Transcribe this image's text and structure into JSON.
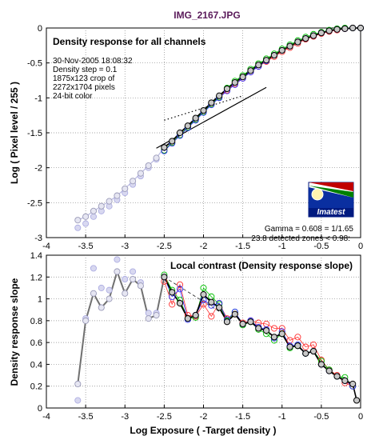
{
  "figure": {
    "title": "IMG_2167.JPG",
    "xlabel": "Log Exposure ( -Target density )"
  },
  "top_panel": {
    "title": "Density response for all channels",
    "ylabel": "Log ( Pixel level / 255 )",
    "info_lines": [
      "30-Nov-2005 18:08:32",
      "Density step = 0.1",
      "1875x123 crop of",
      "2272x1704 pixels",
      "24-bit color"
    ],
    "gamma_text": "Gamma = 0.608 = 1/1.65",
    "zones_text": "23.8 detected zones < 0.98:",
    "logo_text": "Imatest",
    "x_ticks": [
      "-4",
      "-3.5",
      "-3",
      "-2.5",
      "-2",
      "-1.5",
      "-1",
      "-0.5",
      "0"
    ],
    "y_ticks": [
      "0",
      "-0.5",
      "-1",
      "-1.5",
      "-2",
      "-2.5",
      "-3"
    ]
  },
  "bottom_panel": {
    "title": "Local contrast (Density response slope)",
    "ylabel": "Density response slope",
    "x_ticks": [
      "-4",
      "-3.5",
      "-3",
      "-2.5",
      "-2",
      "-1.5",
      "-1",
      "-0.5",
      "0"
    ],
    "y_ticks": [
      "1.4",
      "1.2",
      "1",
      "0.8",
      "0.6",
      "0.4",
      "0.2",
      "0"
    ]
  },
  "colors": {
    "red": "#ff3030",
    "green": "#00c000",
    "blue": "#3030ff",
    "gray": "#000000",
    "faded_fill": "#d8d8f0",
    "faded_edge": "#a8a8e0"
  },
  "chart_data": [
    {
      "type": "line",
      "title": "Density response for all channels",
      "xlabel": "Log Exposure ( -Target density )",
      "ylabel": "Log ( Pixel level / 255 )",
      "xlim": [
        -4,
        0
      ],
      "ylim": [
        -3,
        0
      ],
      "grid": true,
      "x": [
        -3.6,
        -3.5,
        -3.4,
        -3.3,
        -3.2,
        -3.1,
        -3.0,
        -2.9,
        -2.8,
        -2.7,
        -2.6,
        -2.5,
        -2.4,
        -2.3,
        -2.2,
        -2.1,
        -2.0,
        -1.9,
        -1.8,
        -1.7,
        -1.6,
        -1.5,
        -1.4,
        -1.3,
        -1.2,
        -1.1,
        -1.0,
        -0.9,
        -0.8,
        -0.7,
        -0.6,
        -0.5,
        -0.4,
        -0.3,
        -0.2,
        -0.1,
        0.0
      ],
      "saturated_below_x": -2.5,
      "series": [
        {
          "color": "red",
          "values": [
            -2.75,
            -2.7,
            -2.62,
            -2.55,
            -2.48,
            -2.4,
            -2.3,
            -2.19,
            -2.08,
            -1.97,
            -1.86,
            -1.75,
            -1.64,
            -1.53,
            -1.42,
            -1.31,
            -1.2,
            -1.09,
            -0.99,
            -0.89,
            -0.8,
            -0.72,
            -0.63,
            -0.55,
            -0.48,
            -0.41,
            -0.34,
            -0.28,
            -0.22,
            -0.16,
            -0.12,
            -0.08,
            -0.05,
            -0.03,
            -0.01,
            0.0,
            0.0
          ]
        },
        {
          "color": "green",
          "values": [
            -2.75,
            -2.7,
            -2.62,
            -2.55,
            -2.48,
            -2.4,
            -2.3,
            -2.19,
            -2.08,
            -1.97,
            -1.86,
            -1.75,
            -1.64,
            -1.53,
            -1.42,
            -1.31,
            -1.2,
            -1.09,
            -0.99,
            -0.86,
            -0.76,
            -0.68,
            -0.59,
            -0.51,
            -0.44,
            -0.37,
            -0.3,
            -0.24,
            -0.18,
            -0.13,
            -0.09,
            -0.06,
            -0.03,
            -0.01,
            0.0,
            0.0,
            0.0
          ]
        },
        {
          "color": "blue",
          "values": [
            -2.86,
            -2.8,
            -2.7,
            -2.62,
            -2.55,
            -2.46,
            -2.36,
            -2.24,
            -2.12,
            -2.0,
            -1.88,
            -1.76,
            -1.65,
            -1.54,
            -1.43,
            -1.32,
            -1.21,
            -1.1,
            -1.0,
            -0.9,
            -0.81,
            -0.72,
            -0.63,
            -0.55,
            -0.47,
            -0.39,
            -0.32,
            -0.26,
            -0.2,
            -0.15,
            -0.11,
            -0.07,
            -0.04,
            -0.02,
            -0.01,
            0.0,
            0.0
          ]
        },
        {
          "color": "gray",
          "values": [
            -2.75,
            -2.7,
            -2.62,
            -2.55,
            -2.48,
            -2.4,
            -2.3,
            -2.19,
            -2.08,
            -1.97,
            -1.86,
            -1.71,
            -1.62,
            -1.5,
            -1.4,
            -1.29,
            -1.18,
            -1.07,
            -0.97,
            -0.87,
            -0.78,
            -0.7,
            -0.61,
            -0.53,
            -0.46,
            -0.39,
            -0.32,
            -0.26,
            -0.2,
            -0.15,
            -0.11,
            -0.07,
            -0.04,
            -0.02,
            -0.01,
            0.0,
            0.0
          ]
        }
      ],
      "fit_line": {
        "x": [
          -2.6,
          -1.2
        ],
        "y": [
          -1.72,
          -0.85
        ]
      },
      "dotted_line": {
        "x": [
          -2.5,
          -1.5
        ],
        "y": [
          -1.32,
          -0.97
        ]
      }
    },
    {
      "type": "line",
      "title": "Local contrast (Density response slope)",
      "xlabel": "Log Exposure ( -Target density )",
      "ylabel": "Density response slope",
      "xlim": [
        -4,
        0
      ],
      "ylim": [
        0,
        1.4
      ],
      "grid": true,
      "x": [
        -3.6,
        -3.5,
        -3.4,
        -3.3,
        -3.2,
        -3.1,
        -3.0,
        -2.9,
        -2.8,
        -2.7,
        -2.6,
        -2.5,
        -2.4,
        -2.3,
        -2.2,
        -2.1,
        -2.0,
        -1.9,
        -1.8,
        -1.7,
        -1.6,
        -1.5,
        -1.4,
        -1.3,
        -1.2,
        -1.1,
        -1.0,
        -0.9,
        -0.8,
        -0.7,
        -0.6,
        -0.5,
        -0.4,
        -0.3,
        -0.2,
        -0.1
      ],
      "saturated_below_x": -2.5,
      "series": [
        {
          "color": "red",
          "values": [
            0.22,
            0.8,
            1.05,
            0.92,
            1.0,
            1.25,
            1.05,
            1.18,
            1.12,
            0.82,
            0.85,
            1.16,
            0.95,
            1.13,
            0.85,
            0.84,
            0.95,
            0.84,
            0.96,
            0.82,
            0.86,
            0.78,
            0.8,
            0.78,
            0.77,
            0.73,
            0.73,
            0.62,
            0.65,
            0.56,
            0.58,
            0.44,
            0.35,
            0.3,
            0.23,
            0.2
          ]
        },
        {
          "color": "green",
          "values": [
            0.22,
            0.8,
            1.05,
            0.92,
            1.0,
            1.25,
            1.05,
            1.18,
            1.12,
            0.82,
            0.85,
            1.22,
            1.08,
            0.99,
            0.82,
            0.83,
            1.1,
            1.02,
            0.95,
            0.8,
            0.88,
            0.76,
            0.79,
            0.72,
            0.68,
            0.62,
            0.68,
            0.55,
            0.57,
            0.5,
            0.52,
            0.43,
            0.35,
            0.29,
            0.28,
            0.2
          ]
        },
        {
          "color": "blue",
          "values": [
            0.07,
            0.82,
            1.28,
            1.1,
            1.08,
            1.36,
            1.18,
            1.25,
            1.15,
            0.87,
            0.87,
            1.2,
            1.02,
            1.09,
            0.81,
            0.85,
            0.99,
            0.94,
            0.96,
            0.81,
            0.88,
            0.77,
            0.8,
            0.74,
            0.72,
            0.64,
            0.7,
            0.57,
            0.58,
            0.5,
            0.52,
            0.4,
            0.34,
            0.29,
            0.25,
            0.2
          ]
        },
        {
          "color": "gray",
          "values": [
            0.22,
            0.8,
            1.05,
            0.92,
            1.0,
            1.25,
            1.05,
            1.18,
            1.12,
            0.82,
            0.85,
            1.2,
            1.06,
            0.96,
            0.82,
            0.85,
            1.04,
            0.97,
            0.92,
            0.79,
            0.86,
            0.77,
            0.79,
            0.73,
            0.71,
            0.65,
            0.68,
            0.56,
            0.57,
            0.5,
            0.52,
            0.4,
            0.34,
            0.29,
            0.25,
            0.22
          ]
        }
      ],
      "end_point": {
        "x": -0.05,
        "y": 0.07
      },
      "dashed_line": {
        "x": [
          -2.5,
          -1.7
        ],
        "y": [
          1.2,
          0.84
        ]
      }
    }
  ]
}
